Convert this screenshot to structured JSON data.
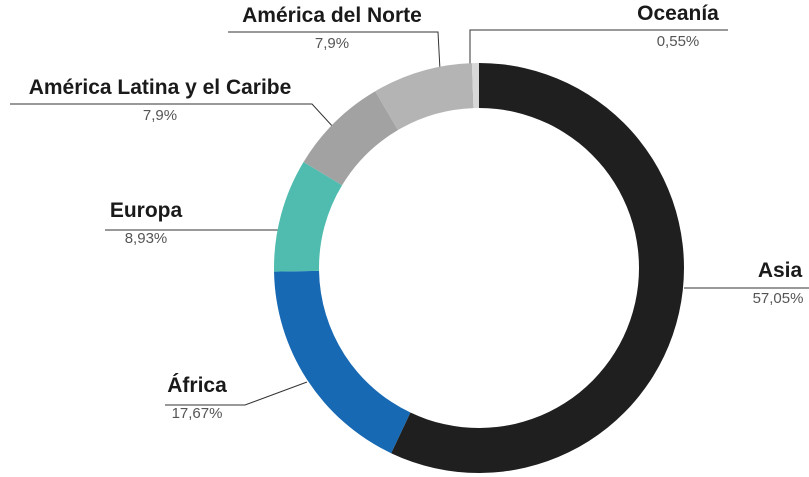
{
  "chart_data": {
    "type": "donut",
    "categories": [
      "Asia",
      "África",
      "Europa",
      "América Latina y el Caribe",
      "América del Norte",
      "Oceanía"
    ],
    "values": [
      57.05,
      17.67,
      8.93,
      7.9,
      7.9,
      0.55
    ],
    "value_labels": [
      "57,05%",
      "17,67%",
      "8,93%",
      "7,9%",
      "7,9%",
      "0,55%"
    ],
    "colors": [
      "#1f1f1f",
      "#1769b4",
      "#4fbcaf",
      "#a2a2a2",
      "#b4b4b4",
      "#d8d8d8"
    ]
  }
}
